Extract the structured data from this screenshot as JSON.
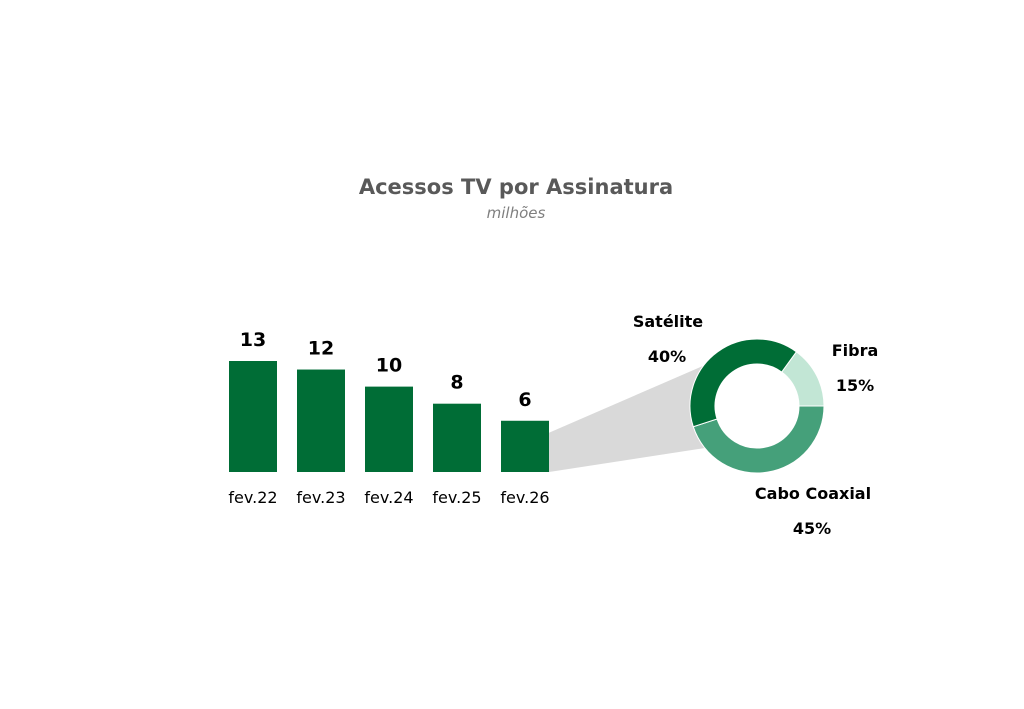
{
  "chart_data": [
    {
      "type": "bar",
      "title": "Acessos TV por Assinatura",
      "subtitle": "milhões",
      "categories": [
        "fev.22",
        "fev.23",
        "fev.24",
        "fev.25",
        "fev.26"
      ],
      "values": [
        13,
        12,
        10,
        8,
        6
      ],
      "ylim": [
        0,
        13
      ],
      "grid": false,
      "color": "#006d36"
    },
    {
      "type": "pie",
      "variant": "donut",
      "detail_of": "fev.26",
      "slices": [
        {
          "name": "Satélite",
          "value": 40,
          "label": "40%",
          "color": "#006d36"
        },
        {
          "name": "Fibra",
          "value": 15,
          "label": "15%",
          "color": "#c2e6d5"
        },
        {
          "name": "Cabo Coaxial",
          "value": 45,
          "label": "45%",
          "color": "#45a07a"
        }
      ]
    }
  ],
  "colors": {
    "connector": "#d9d9d9",
    "title": "#595959",
    "subtitle": "#7f7f7f"
  }
}
